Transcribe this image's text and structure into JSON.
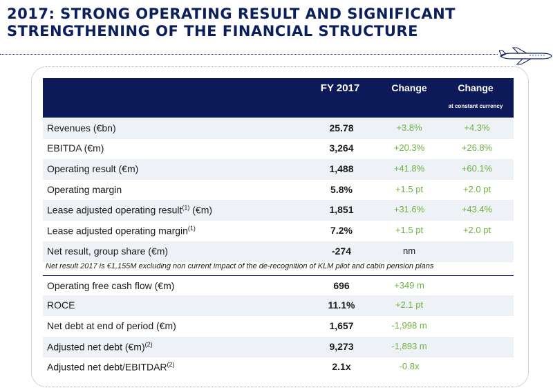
{
  "title": {
    "line1": "2017:  STRONG OPERATING RESULT AND SIGNIFICANT",
    "line2": "STRENGTHENING OF THE FINANCIAL STRUCTURE"
  },
  "table": {
    "headers": {
      "fy": "FY 2017",
      "change": "Change",
      "change_cc": "Change",
      "change_cc_sub": "at constant currency"
    },
    "rows": [
      {
        "label": "Revenues (€bn)",
        "sup": "",
        "suffix": "",
        "value": "25.78",
        "change": "+3.8%",
        "change_cc": "+4.3%"
      },
      {
        "label": "EBITDA (€m)",
        "sup": "",
        "suffix": "",
        "value": "3,264",
        "change": "+20.3%",
        "change_cc": "+26.8%"
      },
      {
        "label": "Operating result (€m)",
        "sup": "",
        "suffix": "",
        "value": "1,488",
        "change": "+41.8%",
        "change_cc": "+60.1%"
      },
      {
        "label": "Operating margin",
        "sup": "",
        "suffix": "",
        "value": "5.8%",
        "change": "+1.5 pt",
        "change_cc": "+2.0 pt"
      },
      {
        "label": "Lease adjusted operating result",
        "sup": "(1)",
        "suffix": " (€m)",
        "value": "1,851",
        "change": "+31.6%",
        "change_cc": "+43.4%"
      },
      {
        "label": "Lease adjusted operating margin",
        "sup": "(1)",
        "suffix": "",
        "value": "7.2%",
        "change": "+1.5 pt",
        "change_cc": "+2.0 pt"
      },
      {
        "label": "Net result, group share (€m)",
        "sup": "",
        "suffix": "",
        "value": "-274",
        "change": "nm",
        "change_cc": ""
      }
    ],
    "note": "Net result 2017 is €1,155M excluding non current impact of the de-recognition of KLM pilot and cabin pension plans",
    "rows2": [
      {
        "label": "Operating free cash flow (€m)",
        "sup": "",
        "value": "696",
        "change": "+349 m"
      },
      {
        "label": "ROCE",
        "sup": "",
        "value": "11.1%",
        "change": "+2.1 pt"
      },
      {
        "label": "Net debt at end of period (€m)",
        "sup": "",
        "value": "1,657",
        "change": "-1,998 m"
      },
      {
        "label": "Adjusted net debt (€m)",
        "sup": "(2)",
        "value": "9,273",
        "change": "-1,893 m"
      },
      {
        "label": "Adjusted net debt/EBITDAR",
        "sup": "(2)",
        "value": "2.1x",
        "change": "-0.8x"
      }
    ]
  },
  "colors": {
    "navy": "#0d1a5a",
    "green": "#6db33f",
    "zebra": "#eef1f6"
  },
  "icons": {
    "decoration": "airplane-icon"
  }
}
